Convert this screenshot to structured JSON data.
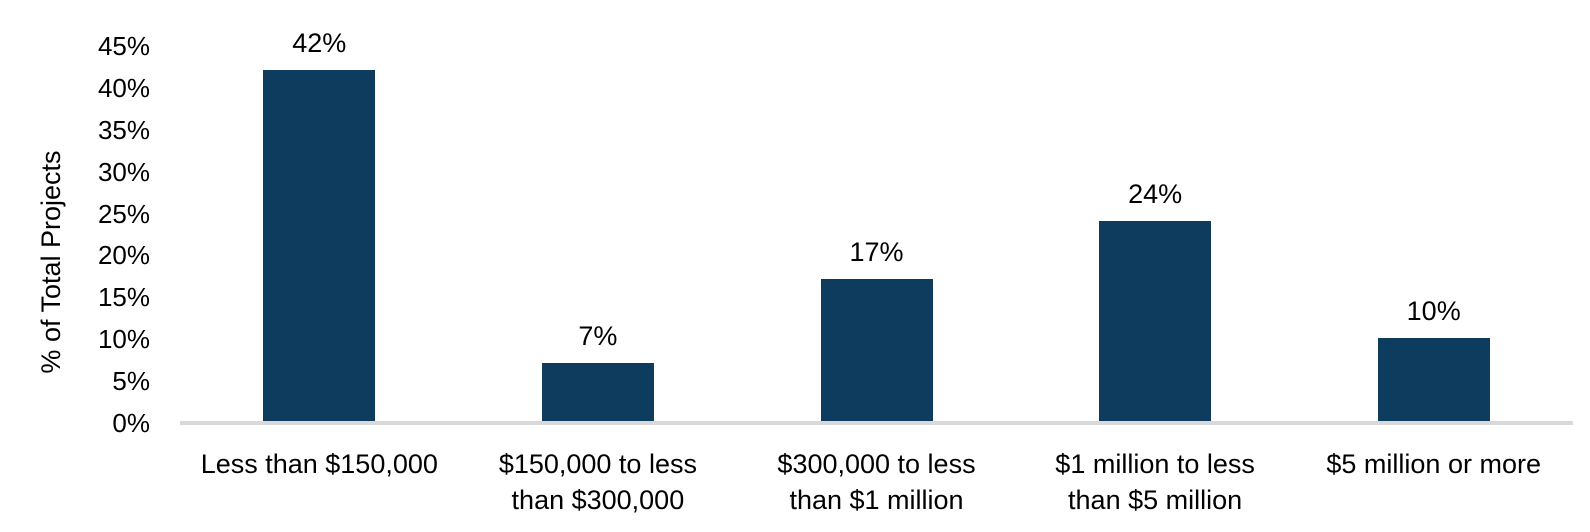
{
  "chart_data": {
    "type": "bar",
    "title": "",
    "xlabel": "",
    "ylabel": "% of Total Projects",
    "categories": [
      "Less than $150,000",
      "$150,000 to less than $300,000",
      "$300,000 to less than $1 million",
      "$1 million to less than $5 million",
      "$5 million or more"
    ],
    "values": [
      42,
      7,
      17,
      24,
      10
    ],
    "data_labels": [
      "42%",
      "7%",
      "17%",
      "24%",
      "10%"
    ],
    "y_tick_labels": [
      "0%",
      "5%",
      "10%",
      "15%",
      "20%",
      "25%",
      "30%",
      "35%",
      "40%",
      "45%"
    ],
    "y_tick_step": 5,
    "ylim": [
      0,
      45
    ],
    "grid": false,
    "legend": null,
    "bar_color": "#0d3c5e",
    "axis_line_color": "#d9d9d9",
    "text_color": "#000000"
  }
}
